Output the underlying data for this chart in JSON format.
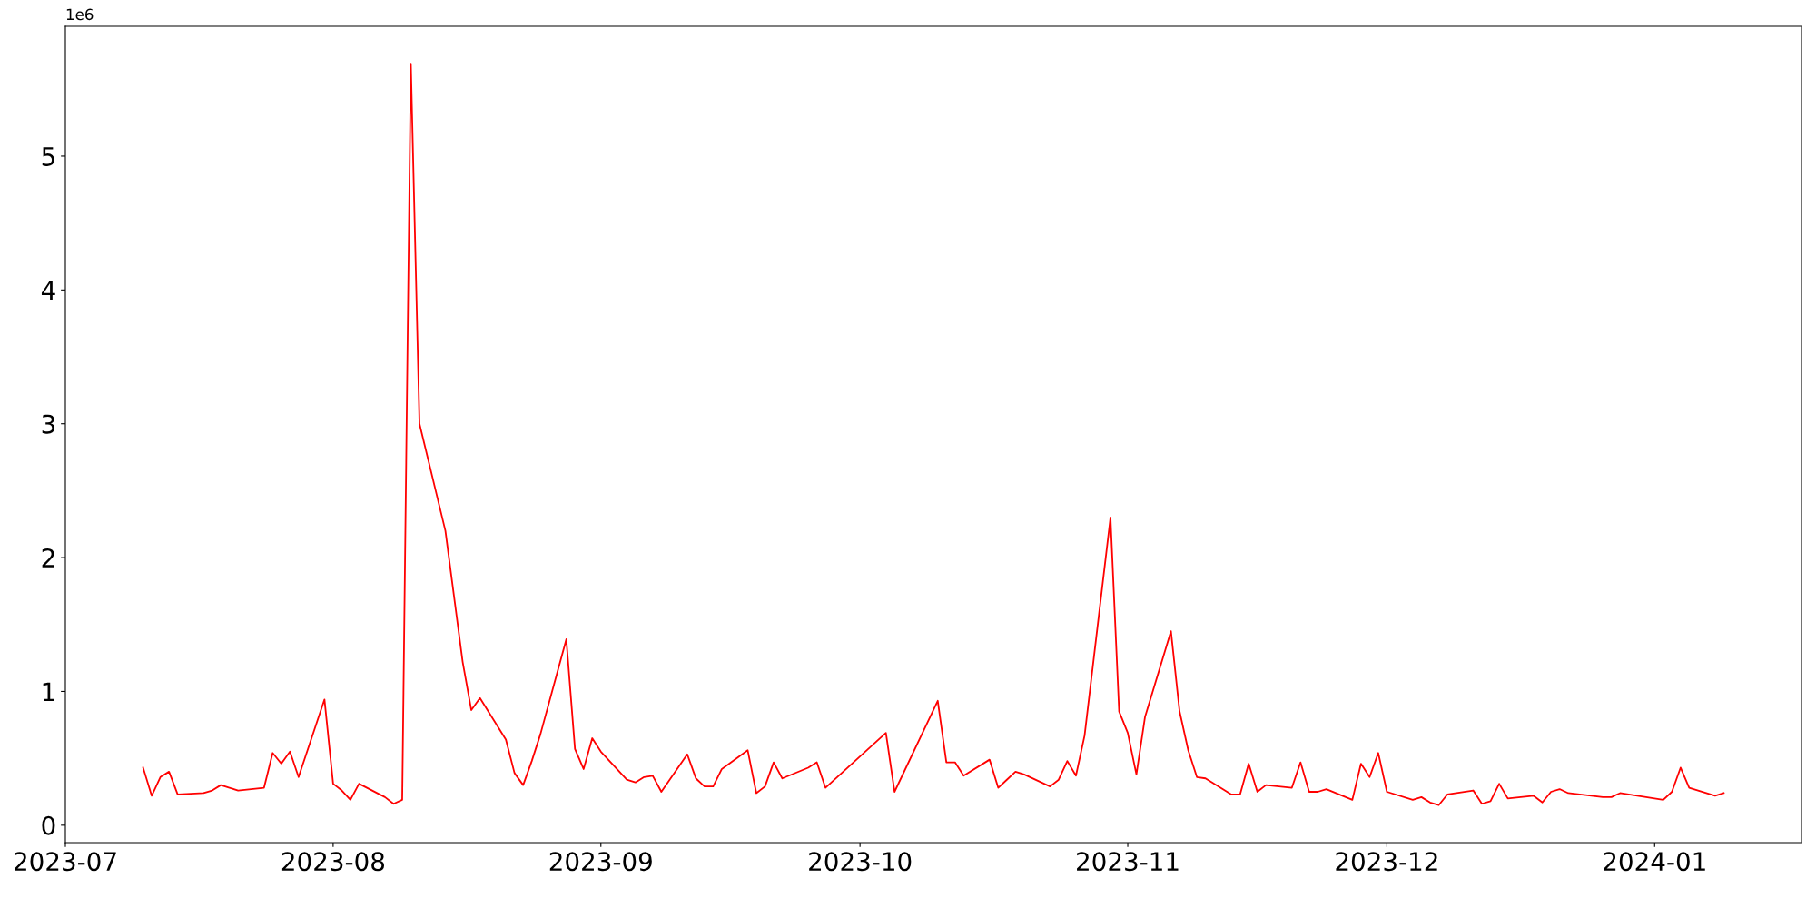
{
  "chart_data": {
    "type": "line",
    "x": [
      "2023-07-10",
      "2023-07-11",
      "2023-07-12",
      "2023-07-13",
      "2023-07-14",
      "2023-07-17",
      "2023-07-18",
      "2023-07-19",
      "2023-07-20",
      "2023-07-21",
      "2023-07-24",
      "2023-07-25",
      "2023-07-26",
      "2023-07-27",
      "2023-07-28",
      "2023-07-31",
      "2023-08-01",
      "2023-08-02",
      "2023-08-03",
      "2023-08-04",
      "2023-08-07",
      "2023-08-08",
      "2023-08-09",
      "2023-08-10",
      "2023-08-11",
      "2023-08-14",
      "2023-08-16",
      "2023-08-17",
      "2023-08-18",
      "2023-08-21",
      "2023-08-22",
      "2023-08-23",
      "2023-08-24",
      "2023-08-25",
      "2023-08-28",
      "2023-08-29",
      "2023-08-30",
      "2023-08-31",
      "2023-09-01",
      "2023-09-04",
      "2023-09-05",
      "2023-09-06",
      "2023-09-07",
      "2023-09-08",
      "2023-09-11",
      "2023-09-12",
      "2023-09-13",
      "2023-09-14",
      "2023-09-15",
      "2023-09-18",
      "2023-09-19",
      "2023-09-20",
      "2023-09-21",
      "2023-09-22",
      "2023-09-25",
      "2023-09-26",
      "2023-09-27",
      "2023-10-04",
      "2023-10-05",
      "2023-10-10",
      "2023-10-11",
      "2023-10-12",
      "2023-10-13",
      "2023-10-16",
      "2023-10-17",
      "2023-10-18",
      "2023-10-19",
      "2023-10-20",
      "2023-10-23",
      "2023-10-24",
      "2023-10-25",
      "2023-10-26",
      "2023-10-27",
      "2023-10-30",
      "2023-10-31",
      "2023-11-01",
      "2023-11-02",
      "2023-11-03",
      "2023-11-06",
      "2023-11-07",
      "2023-11-08",
      "2023-11-09",
      "2023-11-10",
      "2023-11-13",
      "2023-11-14",
      "2023-11-15",
      "2023-11-16",
      "2023-11-17",
      "2023-11-20",
      "2023-11-21",
      "2023-11-22",
      "2023-11-23",
      "2023-11-24",
      "2023-11-27",
      "2023-11-28",
      "2023-11-29",
      "2023-11-30",
      "2023-12-01",
      "2023-12-04",
      "2023-12-05",
      "2023-12-06",
      "2023-12-07",
      "2023-12-08",
      "2023-12-11",
      "2023-12-12",
      "2023-12-13",
      "2023-12-14",
      "2023-12-15",
      "2023-12-18",
      "2023-12-19",
      "2023-12-20",
      "2023-12-21",
      "2023-12-22",
      "2023-12-26",
      "2023-12-27",
      "2023-12-28",
      "2024-01-02",
      "2024-01-03",
      "2024-01-04",
      "2024-01-05",
      "2024-01-08",
      "2024-01-09"
    ],
    "series": [
      {
        "color": "#ff0000",
        "values": [
          0.43,
          0.22,
          0.36,
          0.4,
          0.23,
          0.24,
          0.26,
          0.3,
          0.28,
          0.26,
          0.28,
          0.54,
          0.46,
          0.55,
          0.36,
          0.94,
          0.31,
          0.26,
          0.19,
          0.31,
          0.21,
          0.16,
          0.19,
          5.69,
          3.0,
          2.2,
          1.22,
          0.86,
          0.95,
          0.64,
          0.39,
          0.3,
          0.48,
          0.68,
          1.39,
          0.57,
          0.42,
          0.65,
          0.55,
          0.34,
          0.32,
          0.36,
          0.37,
          0.25,
          0.53,
          0.35,
          0.29,
          0.29,
          0.42,
          0.56,
          0.24,
          0.29,
          0.47,
          0.35,
          0.43,
          0.47,
          0.28,
          0.69,
          0.25,
          0.93,
          0.47,
          0.47,
          0.37,
          0.49,
          0.28,
          0.34,
          0.4,
          0.38,
          0.29,
          0.34,
          0.48,
          0.37,
          0.67,
          2.3,
          0.85,
          0.69,
          0.38,
          0.81,
          1.45,
          0.85,
          0.56,
          0.36,
          0.35,
          0.23,
          0.23,
          0.46,
          0.25,
          0.3,
          0.28,
          0.47,
          0.25,
          0.25,
          0.27,
          0.19,
          0.46,
          0.36,
          0.54,
          0.25,
          0.19,
          0.21,
          0.17,
          0.15,
          0.23,
          0.26,
          0.16,
          0.18,
          0.31,
          0.2,
          0.22,
          0.17,
          0.25,
          0.27,
          0.24,
          0.21,
          0.21,
          0.24,
          0.19,
          0.25,
          0.43,
          0.28,
          0.22,
          0.24
        ]
      }
    ],
    "xlim": [
      "2023-07-01",
      "2024-01-18"
    ],
    "xticks": [
      {
        "value": "2023-07-01",
        "label": "2023-07"
      },
      {
        "value": "2023-08-01",
        "label": "2023-08"
      },
      {
        "value": "2023-09-01",
        "label": "2023-09"
      },
      {
        "value": "2023-10-01",
        "label": "2023-10"
      },
      {
        "value": "2023-11-01",
        "label": "2023-11"
      },
      {
        "value": "2023-12-01",
        "label": "2023-12"
      },
      {
        "value": "2024-01-01",
        "label": "2024-01"
      }
    ],
    "ylim": [
      -0.13,
      5.97
    ],
    "yticks": [
      0,
      1,
      2,
      3,
      4,
      5
    ],
    "annotations": [
      "1e6"
    ],
    "grid": false,
    "legend": false,
    "marker": "none",
    "line_style": "solid"
  }
}
